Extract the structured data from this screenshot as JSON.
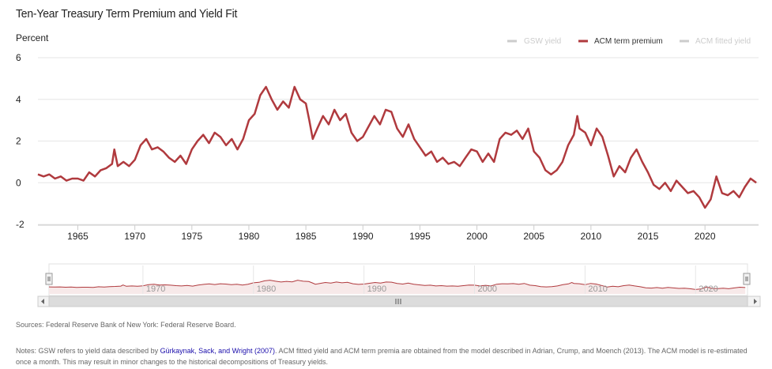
{
  "page": {
    "title": "Ten-Year Treasury Term Premium and Yield Fit",
    "sources": "Sources: Federal Reserve Bank of New York: Federal Reserve Board.",
    "notes_pre": "Notes: GSW refers to yield data described by ",
    "notes_link": "Gürkaynak, Sack, and Wright (2007)",
    "notes_post": ". ACM fitted yield and ACM term premia are obtained from the model described in Adrian, Crump, and Moench (2013). The ACM model is re-estimated once a month. This may result in minor changes to the historical decompositions of Treasury yields."
  },
  "colors": {
    "acm": "#b03a3e",
    "inactive": "#cccccc",
    "grid": "#e6e6e6",
    "navigator_fill": "#f7e9e9",
    "scrollbar": "#dddddd"
  },
  "navigator": {
    "ticks": [
      "1970",
      "1980",
      "1990",
      "2000",
      "2010",
      "2020"
    ]
  },
  "chart_data": {
    "type": "line",
    "title": "Ten-Year Treasury Term Premium and Yield Fit",
    "ylabel": "Percent",
    "ylim": [
      -2,
      6
    ],
    "yticks": [
      -2,
      0,
      2,
      4,
      6
    ],
    "xlim": [
      1961.5,
      2024.7
    ],
    "xticks": [
      "1965",
      "1970",
      "1975",
      "1980",
      "1985",
      "1990",
      "1995",
      "2000",
      "2005",
      "2010",
      "2015",
      "2020"
    ],
    "grid": true,
    "legend_position": "top-right",
    "series": [
      {
        "name": "GSW yield",
        "visible": false,
        "x": [],
        "values": []
      },
      {
        "name": "ACM term premium",
        "visible": true,
        "x": [
          1961.5,
          1962,
          1962.5,
          1963,
          1963.5,
          1964,
          1964.5,
          1965,
          1965.5,
          1966,
          1966.5,
          1967,
          1967.5,
          1968,
          1968.2,
          1968.5,
          1969,
          1969.5,
          1970,
          1970.5,
          1971,
          1971.5,
          1972,
          1972.5,
          1973,
          1973.5,
          1974,
          1974.5,
          1975,
          1975.5,
          1976,
          1976.5,
          1977,
          1977.5,
          1978,
          1978.5,
          1979,
          1979.5,
          1980,
          1980.5,
          1981,
          1981.5,
          1982,
          1982.5,
          1983,
          1983.5,
          1984,
          1984.5,
          1985,
          1985.3,
          1985.6,
          1986,
          1986.5,
          1987,
          1987.5,
          1988,
          1988.5,
          1989,
          1989.5,
          1990,
          1990.5,
          1991,
          1991.5,
          1992,
          1992.5,
          1993,
          1993.5,
          1994,
          1994.5,
          1995,
          1995.5,
          1996,
          1996.5,
          1997,
          1997.5,
          1998,
          1998.5,
          1999,
          1999.5,
          2000,
          2000.5,
          2001,
          2001.5,
          2002,
          2002.5,
          2003,
          2003.5,
          2004,
          2004.5,
          2005,
          2005.5,
          2006,
          2006.5,
          2007,
          2007.5,
          2008,
          2008.5,
          2008.8,
          2009,
          2009.5,
          2010,
          2010.5,
          2011,
          2011.5,
          2012,
          2012.5,
          2013,
          2013.5,
          2014,
          2014.5,
          2015,
          2015.5,
          2016,
          2016.5,
          2017,
          2017.5,
          2018,
          2018.5,
          2019,
          2019.5,
          2020,
          2020.5,
          2021,
          2021.5,
          2022,
          2022.5,
          2023,
          2023.5,
          2024,
          2024.5
        ],
        "values": [
          0.4,
          0.3,
          0.4,
          0.2,
          0.3,
          0.1,
          0.2,
          0.2,
          0.1,
          0.5,
          0.3,
          0.6,
          0.7,
          0.9,
          1.6,
          0.8,
          1.0,
          0.8,
          1.1,
          1.8,
          2.1,
          1.6,
          1.7,
          1.5,
          1.2,
          1.0,
          1.3,
          0.9,
          1.6,
          2.0,
          2.3,
          1.9,
          2.4,
          2.2,
          1.8,
          2.1,
          1.6,
          2.1,
          3.0,
          3.3,
          4.2,
          4.6,
          4.0,
          3.5,
          3.9,
          3.6,
          4.6,
          4.0,
          3.8,
          3.0,
          2.1,
          2.6,
          3.2,
          2.8,
          3.5,
          3.0,
          3.3,
          2.4,
          2.0,
          2.2,
          2.7,
          3.2,
          2.8,
          3.5,
          3.4,
          2.6,
          2.2,
          2.8,
          2.1,
          1.7,
          1.3,
          1.5,
          1.0,
          1.2,
          0.9,
          1.0,
          0.8,
          1.2,
          1.6,
          1.5,
          1.0,
          1.4,
          1.0,
          2.1,
          2.4,
          2.3,
          2.5,
          2.1,
          2.6,
          1.5,
          1.2,
          0.6,
          0.4,
          0.6,
          1.0,
          1.8,
          2.3,
          3.2,
          2.6,
          2.4,
          1.8,
          2.6,
          2.2,
          1.3,
          0.3,
          0.8,
          0.5,
          1.2,
          1.6,
          1.0,
          0.5,
          -0.1,
          -0.3,
          0.0,
          -0.4,
          0.1,
          -0.2,
          -0.5,
          -0.4,
          -0.7,
          -1.2,
          -0.8,
          0.3,
          -0.5,
          -0.6,
          -0.4,
          -0.7,
          -0.2,
          0.2,
          0.0
        ]
      },
      {
        "name": "ACM fitted yield",
        "visible": false,
        "x": [],
        "values": []
      }
    ]
  }
}
